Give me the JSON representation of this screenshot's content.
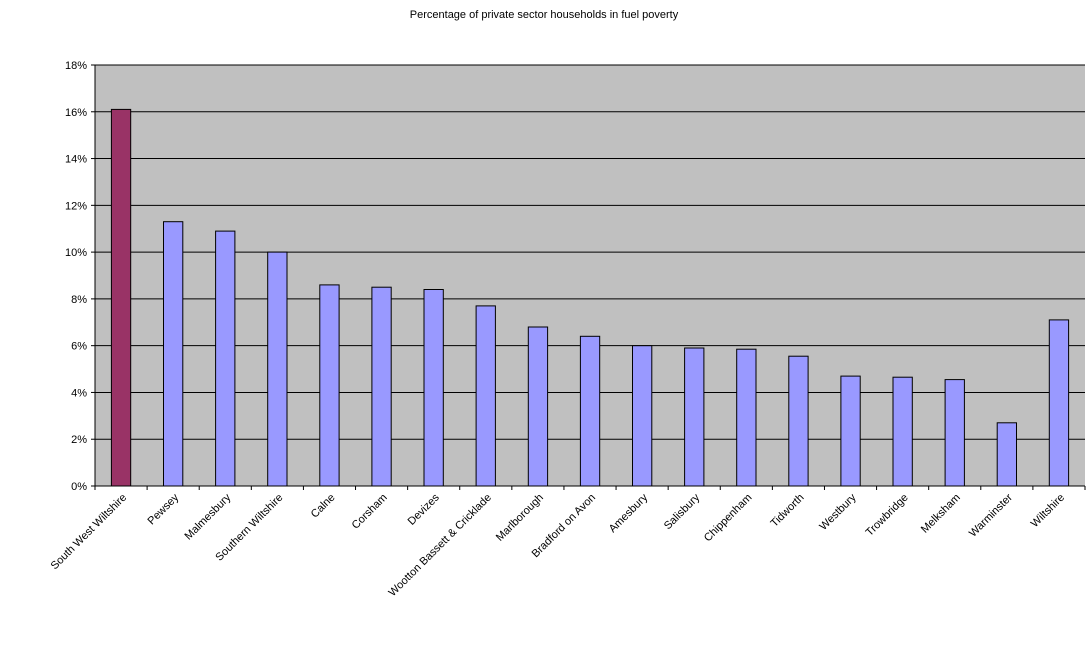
{
  "chart_data": {
    "type": "bar",
    "title": "Percentage of private sector households in fuel poverty",
    "xlabel": "",
    "ylabel": "",
    "ylim": [
      0,
      18
    ],
    "y_ticks": [
      "0%",
      "2%",
      "4%",
      "6%",
      "8%",
      "10%",
      "12%",
      "14%",
      "16%",
      "18%"
    ],
    "y_tick_values": [
      0,
      2,
      4,
      6,
      8,
      10,
      12,
      14,
      16,
      18
    ],
    "grid": true,
    "legend": "none",
    "categories": [
      "South West Wiltshire",
      "Pewsey",
      "Malmesbury",
      "Southern Wiltshire",
      "Calne",
      "Corsham",
      "Devizes",
      "Wootton Bassett & Cricklade",
      "Marlborough",
      "Bradford on Avon",
      "Amesbury",
      "Salisbury",
      "Chippenham",
      "Tidworth",
      "Westbury",
      "Trowbridge",
      "Melksham",
      "Warminster",
      "Wiltshire"
    ],
    "values": [
      16.1,
      11.3,
      10.9,
      10.0,
      8.6,
      8.5,
      8.4,
      7.7,
      6.8,
      6.4,
      6.0,
      5.9,
      5.85,
      5.55,
      4.7,
      4.65,
      4.55,
      2.7,
      7.1
    ],
    "colors": {
      "highlight": "#993366",
      "bar": "#9999ff",
      "plot_background": "#c0c0c0",
      "gridline": "#000000"
    },
    "highlight_index": 0
  }
}
